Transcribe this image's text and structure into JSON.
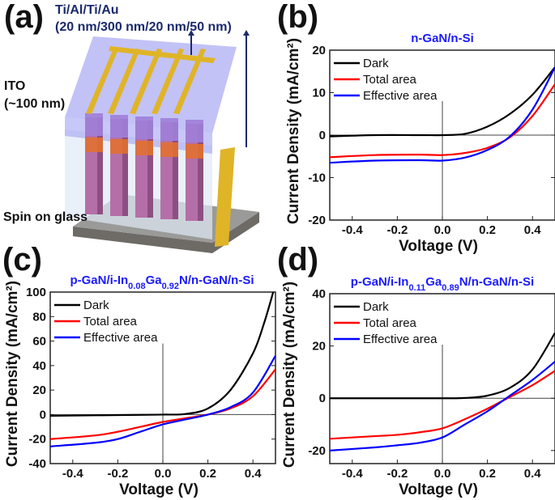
{
  "panels": {
    "a": {
      "label": "(a)",
      "metal_line1": "Ti/Al/Ti/Au",
      "metal_line2": "(20 nm/300 nm/20 nm/50 nm)",
      "ito_line1": "ITO",
      "ito_line2": "(~100 nm)",
      "sog": "Spin on glass"
    },
    "b": {
      "label": "(b)"
    },
    "c": {
      "label": "(c)"
    },
    "d": {
      "label": "(d)"
    }
  },
  "colors": {
    "Dark": "#000000",
    "Total area": "#ff0000",
    "Effective area": "#0000ff",
    "title": "#1a1aff",
    "annotation": "#1b2a6b"
  },
  "chart_data": [
    {
      "panel": "b",
      "type": "line",
      "title": [
        {
          "text": "n-GaN/n-Si",
          "sub": false
        }
      ],
      "xlabel": "Voltage (V)",
      "ylabel": "Current Density (mA/cm²)",
      "xlim": [
        -0.5,
        0.5
      ],
      "ylim": [
        -20,
        20
      ],
      "xticks": [
        "-0.4",
        "-0.2",
        "0.0",
        "0.2",
        "0.4"
      ],
      "yticks": [
        "20",
        "10",
        "0",
        "-10",
        "-20"
      ],
      "legend": "top-left",
      "grid": false,
      "series": [
        {
          "name": "Dark",
          "x": [
            -0.5,
            -0.3,
            -0.1,
            0,
            0.1,
            0.2,
            0.3,
            0.4,
            0.5
          ],
          "y": [
            -0.3,
            0,
            0,
            0,
            0.3,
            2,
            5,
            9.5,
            16
          ]
        },
        {
          "name": "Total area",
          "x": [
            -0.5,
            -0.3,
            -0.1,
            0,
            0.1,
            0.2,
            0.3,
            0.4,
            0.5
          ],
          "y": [
            -5.2,
            -4.7,
            -4.6,
            -4.7,
            -4.2,
            -3,
            -0.5,
            4.5,
            12
          ]
        },
        {
          "name": "Effective area",
          "x": [
            -0.5,
            -0.3,
            -0.1,
            0,
            0.1,
            0.2,
            0.3,
            0.4,
            0.5
          ],
          "y": [
            -6.5,
            -6,
            -5.9,
            -6,
            -5.3,
            -3.5,
            -0.3,
            6,
            16
          ]
        }
      ]
    },
    {
      "panel": "c",
      "type": "line",
      "title": [
        {
          "text": "p-GaN/i-In",
          "sub": false
        },
        {
          "text": "0.08",
          "sub": true
        },
        {
          "text": "Ga",
          "sub": false
        },
        {
          "text": "0.92",
          "sub": true
        },
        {
          "text": "N/n-GaN/n-Si",
          "sub": false
        }
      ],
      "xlabel": "Voltage (V)",
      "ylabel": "Current Density (mA/cm²)",
      "xlim": [
        -0.5,
        0.5
      ],
      "ylim": [
        -40,
        100
      ],
      "xticks": [
        "-0.4",
        "-0.2",
        "0.0",
        "0.2",
        "0.4"
      ],
      "yticks": [
        "100",
        "80",
        "60",
        "40",
        "20",
        "0",
        "-20",
        "-40"
      ],
      "legend": "top-left",
      "grid": false,
      "series": [
        {
          "name": "Dark",
          "x": [
            -0.5,
            -0.3,
            -0.1,
            0,
            0.1,
            0.2,
            0.3,
            0.4,
            0.45,
            0.49
          ],
          "y": [
            -1,
            -0.6,
            -0.2,
            0,
            0.5,
            5,
            20,
            50,
            75,
            100
          ]
        },
        {
          "name": "Total area",
          "x": [
            -0.5,
            -0.3,
            -0.2,
            -0.1,
            0,
            0.1,
            0.2,
            0.3,
            0.4,
            0.5
          ],
          "y": [
            -20,
            -17,
            -14,
            -10,
            -6,
            -3,
            0,
            5,
            15,
            37
          ]
        },
        {
          "name": "Effective area",
          "x": [
            -0.5,
            -0.3,
            -0.2,
            -0.1,
            0,
            0.1,
            0.2,
            0.3,
            0.4,
            0.5
          ],
          "y": [
            -26,
            -23,
            -20,
            -14,
            -8,
            -4,
            0,
            6,
            18,
            48
          ]
        }
      ]
    },
    {
      "panel": "d",
      "type": "line",
      "title": [
        {
          "text": "p-GaN/i-In",
          "sub": false
        },
        {
          "text": "0.11",
          "sub": true
        },
        {
          "text": "Ga",
          "sub": false
        },
        {
          "text": "0.89",
          "sub": true
        },
        {
          "text": "N/n-GaN/n-Si",
          "sub": false
        }
      ],
      "xlabel": "Voltage (V)",
      "ylabel": "Current Density (mA/cm²)",
      "xlim": [
        -0.5,
        0.5
      ],
      "ylim": [
        -25,
        40
      ],
      "xticks": [
        "-0.4",
        "-0.2",
        "0.0",
        "0.2",
        "0.4"
      ],
      "yticks": [
        "40",
        "20",
        "0",
        "-20"
      ],
      "legend": "top-left",
      "grid": false,
      "series": [
        {
          "name": "Dark",
          "x": [
            -0.5,
            -0.2,
            0,
            0.1,
            0.2,
            0.3,
            0.4,
            0.5
          ],
          "y": [
            0,
            0,
            0,
            0.1,
            1,
            4,
            11,
            25
          ]
        },
        {
          "name": "Total area",
          "x": [
            -0.5,
            -0.3,
            -0.2,
            -0.1,
            0,
            0.1,
            0.2,
            0.3,
            0.4,
            0.5
          ],
          "y": [
            -15.5,
            -14.5,
            -14,
            -13,
            -11.5,
            -8,
            -4,
            0.5,
            5,
            10.5
          ]
        },
        {
          "name": "Effective area",
          "x": [
            -0.5,
            -0.3,
            -0.2,
            -0.1,
            0,
            0.1,
            0.2,
            0.3,
            0.4,
            0.5
          ],
          "y": [
            -20,
            -18.8,
            -18,
            -17,
            -15,
            -10,
            -5,
            1,
            7,
            14
          ]
        }
      ]
    }
  ]
}
